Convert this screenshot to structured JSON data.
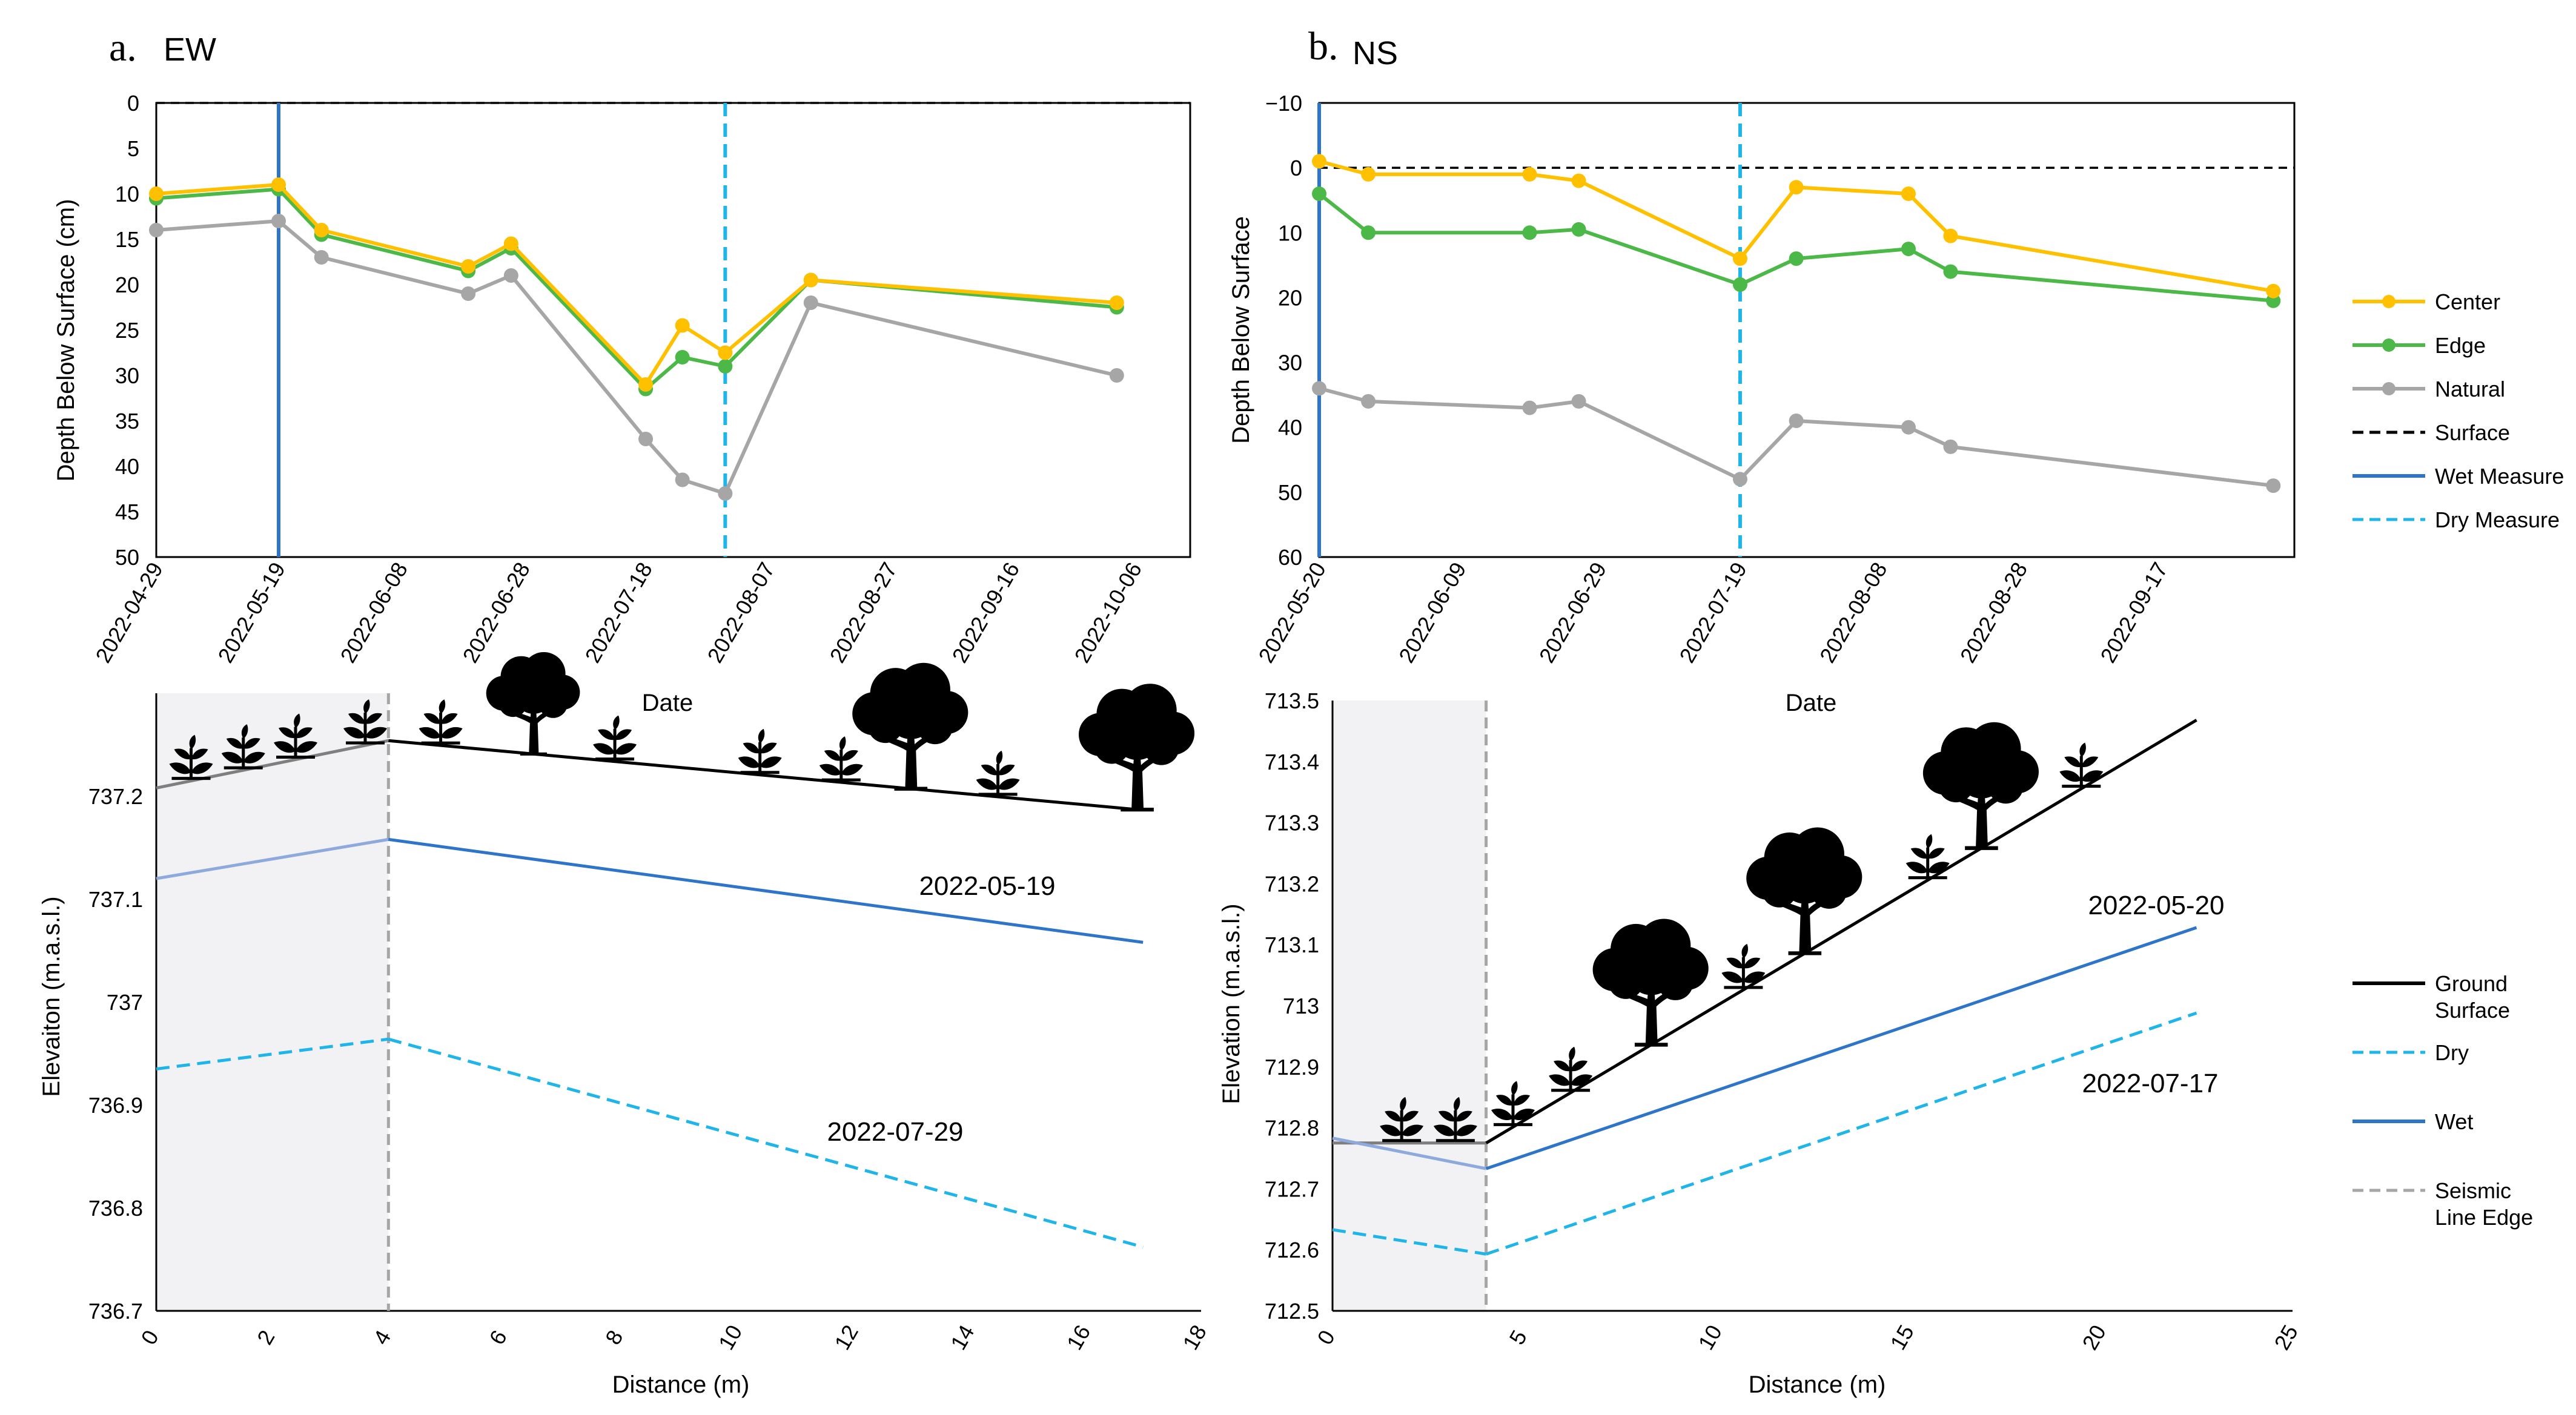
{
  "chart_data": [
    {
      "id": "a_top",
      "type": "line",
      "panel_label": "a.",
      "panel_title": "EW",
      "xlabel": "Date",
      "ylabel": "Depth Below Surface (cm)",
      "ylim": [
        0,
        50
      ],
      "y_inverted": true,
      "yticks": [
        0,
        5,
        10,
        15,
        20,
        25,
        30,
        35,
        40,
        45,
        50
      ],
      "xdomain": [
        "2022-04-29",
        "2022-10-15"
      ],
      "xtick_labels": [
        "2022-04-29",
        "2022-05-19",
        "2022-06-08",
        "2022-06-28",
        "2022-07-18",
        "2022-08-07",
        "2022-08-27",
        "2022-09-16",
        "2022-10-06"
      ],
      "series": [
        {
          "name": "Center",
          "color": "#FFC000",
          "x": [
            "2022-04-29",
            "2022-05-19",
            "2022-05-26",
            "2022-06-19",
            "2022-06-26",
            "2022-07-18",
            "2022-07-24",
            "2022-07-31",
            "2022-08-14",
            "2022-10-03"
          ],
          "values": [
            10,
            9,
            14,
            18,
            15.5,
            31,
            24.5,
            27.5,
            19.5,
            22
          ]
        },
        {
          "name": "Edge",
          "color": "#4CB848",
          "x": [
            "2022-04-29",
            "2022-05-19",
            "2022-05-26",
            "2022-06-19",
            "2022-06-26",
            "2022-07-18",
            "2022-07-24",
            "2022-07-31",
            "2022-08-14",
            "2022-10-03"
          ],
          "values": [
            10.5,
            9.5,
            14.5,
            18.5,
            16,
            31.5,
            28,
            29,
            19.5,
            22.5
          ]
        },
        {
          "name": "Natural",
          "color": "#A6A6A6",
          "x": [
            "2022-04-29",
            "2022-05-19",
            "2022-05-26",
            "2022-06-19",
            "2022-06-26",
            "2022-07-18",
            "2022-07-24",
            "2022-07-31",
            "2022-08-14",
            "2022-10-03"
          ],
          "values": [
            14,
            13,
            17,
            21,
            19,
            37,
            41.5,
            43,
            22,
            30
          ]
        }
      ],
      "vlines": [
        {
          "name": "Wet Measure",
          "x": "2022-05-19",
          "color": "#2E75C9",
          "dashed": false
        },
        {
          "name": "Dry Measure",
          "x": "2022-07-31",
          "color": "#1FB5E8",
          "dashed": true
        }
      ],
      "surface": {
        "name": "Surface",
        "y": 0
      }
    },
    {
      "id": "b_top",
      "type": "line",
      "panel_label": "b.",
      "panel_title": "NS",
      "xlabel": "Date",
      "ylabel": "Depth Below Surface",
      "ylim": [
        -10,
        60
      ],
      "y_inverted": true,
      "yticks": [
        -10,
        0,
        10,
        20,
        30,
        40,
        50,
        60
      ],
      "xdomain": [
        "2022-05-20",
        "2022-10-06"
      ],
      "xtick_labels": [
        "2022-05-20",
        "2022-06-09",
        "2022-06-29",
        "2022-07-19",
        "2022-08-08",
        "2022-08-28",
        "2022-09-17"
      ],
      "series": [
        {
          "name": "Center",
          "color": "#FFC000",
          "x": [
            "2022-05-20",
            "2022-05-27",
            "2022-06-19",
            "2022-06-26",
            "2022-07-19",
            "2022-07-27",
            "2022-08-12",
            "2022-08-18",
            "2022-10-03"
          ],
          "values": [
            -1,
            1,
            1,
            2,
            14,
            3,
            4,
            10.5,
            19
          ]
        },
        {
          "name": "Edge",
          "color": "#4CB848",
          "x": [
            "2022-05-20",
            "2022-05-27",
            "2022-06-19",
            "2022-06-26",
            "2022-07-19",
            "2022-07-27",
            "2022-08-12",
            "2022-08-18",
            "2022-10-03"
          ],
          "values": [
            4,
            10,
            10,
            9.5,
            18,
            14,
            12.5,
            16,
            20.5
          ]
        },
        {
          "name": "Natural",
          "color": "#A6A6A6",
          "x": [
            "2022-05-20",
            "2022-05-27",
            "2022-06-19",
            "2022-06-26",
            "2022-07-19",
            "2022-07-27",
            "2022-08-12",
            "2022-08-18",
            "2022-10-03"
          ],
          "values": [
            34,
            36,
            37,
            36,
            48,
            39,
            40,
            43,
            49
          ]
        }
      ],
      "vlines": [
        {
          "name": "Wet Measure",
          "x": "2022-05-20",
          "color": "#2E75C9",
          "dashed": false
        },
        {
          "name": "Dry Measure",
          "x": "2022-07-19",
          "color": "#1FB5E8",
          "dashed": true
        }
      ],
      "surface": {
        "name": "Surface",
        "y": 0
      }
    },
    {
      "id": "a_bottom",
      "type": "line",
      "xlabel": "Distance (m)",
      "ylabel": "Elevaiton (m.a.s.l.)",
      "xlim": [
        0,
        18
      ],
      "ylim": [
        736.7,
        737.3
      ],
      "xticks": [
        0,
        2,
        4,
        6,
        8,
        10,
        12,
        14,
        16,
        18
      ],
      "ytick_labels": [
        "736.7",
        "736.8",
        "736.9",
        "737",
        "737.1",
        "737.2"
      ],
      "seismic_line_edge_x": 4,
      "ground": {
        "x": [
          0,
          4,
          16.9
        ],
        "y": [
          737.208,
          737.254,
          737.187
        ]
      },
      "wet": {
        "label": "2022-05-19",
        "x": [
          0,
          4,
          17
        ],
        "y": [
          737.12,
          737.158,
          737.058
        ]
      },
      "dry": {
        "label": "2022-07-29",
        "x": [
          0,
          4,
          17
        ],
        "y": [
          736.935,
          736.964,
          736.762
        ]
      },
      "plants_x": [
        0.6,
        1.5,
        2.4,
        3.6,
        4.9,
        7.9,
        10.4,
        11.8,
        14.5
      ],
      "trees_x": [
        6.5,
        13,
        16.9
      ]
    },
    {
      "id": "b_bottom",
      "type": "line",
      "xlabel": "Distance (m)",
      "ylabel": "Elevation (m.a.s.l.)",
      "xlim": [
        0,
        25
      ],
      "ylim": [
        712.5,
        713.5
      ],
      "xticks": [
        0,
        5,
        10,
        15,
        20,
        25
      ],
      "ytick_labels": [
        "712.5",
        "712.6",
        "712.7",
        "712.8",
        "712.9",
        "713",
        "713.1",
        "713.2",
        "713.3",
        "713.4",
        "713.5"
      ],
      "seismic_line_edge_x": 4,
      "ground": {
        "x": [
          0,
          4,
          22.5
        ],
        "y": [
          712.775,
          712.775,
          713.468
        ]
      },
      "wet": {
        "label": "2022-05-20",
        "x": [
          0,
          4,
          22.5
        ],
        "y": [
          712.783,
          712.733,
          713.128
        ]
      },
      "dry": {
        "label": "2022-07-17",
        "x": [
          0,
          4,
          22.5
        ],
        "y": [
          712.633,
          712.593,
          712.988
        ]
      },
      "plants_x": [
        1.8,
        3.2,
        4.7,
        6.2,
        10.7,
        15.5,
        19.5
      ],
      "trees_x": [
        8.3,
        12.3,
        16.9
      ]
    }
  ],
  "legend_top": {
    "items": [
      {
        "label": "Center",
        "color": "#FFC000",
        "style": "marker-line"
      },
      {
        "label": "Edge",
        "color": "#4CB848",
        "style": "marker-line"
      },
      {
        "label": "Natural",
        "color": "#A6A6A6",
        "style": "marker-line"
      },
      {
        "label": "Surface",
        "color": "#000000",
        "style": "dash"
      },
      {
        "label": "Wet Measure",
        "color": "#2E75C9",
        "style": "solid"
      },
      {
        "label": "Dry Measure",
        "color": "#1FB5E8",
        "style": "dash"
      }
    ]
  },
  "legend_bottom": {
    "items": [
      {
        "label": [
          "Ground",
          "Surface"
        ],
        "color": "#000000",
        "style": "solid"
      },
      {
        "label": [
          "Dry"
        ],
        "color": "#1FB5E8",
        "style": "dash"
      },
      {
        "label": [
          "Wet"
        ],
        "color": "#2E75C9",
        "style": "solid"
      },
      {
        "label": [
          "Seismic",
          "Line Edge"
        ],
        "color": "#A6A6A6",
        "style": "dash"
      }
    ]
  }
}
